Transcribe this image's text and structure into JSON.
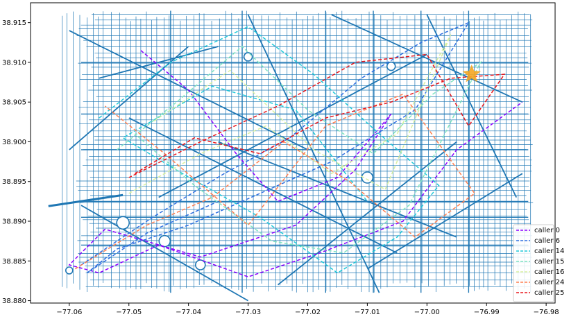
{
  "chart_data": {
    "type": "line",
    "title": "",
    "xlabel": "",
    "ylabel": "",
    "xlim": [
      -77.0665,
      -76.9785
    ],
    "ylim": [
      38.8797,
      38.9175
    ],
    "grid": false,
    "legend_position": "lower-right",
    "x_ticks": [
      {
        "value": -77.06,
        "label": "−77.06"
      },
      {
        "value": -77.05,
        "label": "−77.05"
      },
      {
        "value": -77.04,
        "label": "−77.04"
      },
      {
        "value": -77.03,
        "label": "−77.03"
      },
      {
        "value": -77.02,
        "label": "−77.02"
      },
      {
        "value": -77.01,
        "label": "−77.01"
      },
      {
        "value": -77.0,
        "label": "−77.00"
      },
      {
        "value": -76.99,
        "label": "−76.99"
      },
      {
        "value": -76.98,
        "label": "−76.98"
      }
    ],
    "y_ticks": [
      {
        "value": 38.88,
        "label": "38.880"
      },
      {
        "value": 38.885,
        "label": "38.885"
      },
      {
        "value": 38.89,
        "label": "38.890"
      },
      {
        "value": 38.895,
        "label": "38.895"
      },
      {
        "value": 38.9,
        "label": "38.900"
      },
      {
        "value": 38.905,
        "label": "38.905"
      },
      {
        "value": 38.91,
        "label": "38.910"
      },
      {
        "value": 38.915,
        "label": "38.915"
      }
    ],
    "street_network_color": "#1f77b4",
    "marker": {
      "shape": "star",
      "color": "#f5a623",
      "x": -76.9925,
      "y": 38.9085
    },
    "series": [
      {
        "name": "caller 0",
        "color": "#8b00ff",
        "x": [
          -77.048,
          -77.04,
          -77.032,
          -77.025,
          -77.015,
          -77.006,
          -77.012,
          -77.022,
          -77.038,
          -77.054,
          -77.06,
          -77.055,
          -77.045,
          -77.03,
          -77.018,
          -77.004,
          -76.995,
          -76.984
        ],
        "y": [
          38.9115,
          38.9065,
          38.8985,
          38.8925,
          38.8955,
          38.9035,
          38.8965,
          38.8895,
          38.8855,
          38.889,
          38.8845,
          38.8835,
          38.887,
          38.883,
          38.886,
          38.89,
          38.899,
          38.905
        ]
      },
      {
        "name": "caller 6",
        "color": "#2e6fe0",
        "x": [
          -77.058,
          -77.046,
          -77.034,
          -77.023,
          -77.011,
          -77.001,
          -76.993,
          -77.002,
          -77.016,
          -77.028,
          -77.04,
          -77.052,
          -77.057,
          -77.047,
          -77.035
        ],
        "y": [
          38.8845,
          38.8905,
          38.896,
          38.9005,
          38.908,
          38.9125,
          38.915,
          38.904,
          38.8975,
          38.8935,
          38.8895,
          38.8865,
          38.8835,
          38.8885,
          38.8925
        ]
      },
      {
        "name": "caller 14",
        "color": "#1ec8d8",
        "x": [
          -77.055,
          -77.043,
          -77.03,
          -77.019,
          -77.008,
          -76.998,
          -77.005,
          -77.015,
          -77.028,
          -77.041,
          -77.051,
          -77.036,
          -77.022,
          -77.01
        ],
        "y": [
          38.903,
          38.91,
          38.9145,
          38.9085,
          38.901,
          38.8945,
          38.888,
          38.8835,
          38.8905,
          38.896,
          38.9005,
          38.907,
          38.904,
          38.8925
        ]
      },
      {
        "name": "caller 15",
        "color": "#7fe3c0",
        "x": [
          -77.052,
          -77.042,
          -77.031,
          -77.02,
          -77.009,
          -76.999,
          -76.991,
          -77.003,
          -77.014,
          -77.026,
          -77.039,
          -77.049
        ],
        "y": [
          38.899,
          38.905,
          38.912,
          38.904,
          38.8985,
          38.906,
          38.91,
          38.892,
          38.886,
          38.8875,
          38.8945,
          38.901
        ]
      },
      {
        "name": "caller 16",
        "color": "#d8f0a0",
        "x": [
          -77.05,
          -77.038,
          -77.027,
          -77.016,
          -77.005,
          -76.996,
          -77.007,
          -77.019,
          -77.033,
          -77.046
        ],
        "y": [
          38.8935,
          38.8985,
          38.902,
          38.896,
          38.901,
          38.9135,
          38.894,
          38.899,
          38.909,
          38.9025
        ]
      },
      {
        "name": "caller 24",
        "color": "#ff7f50",
        "x": [
          -77.059,
          -77.047,
          -77.036,
          -77.024,
          -77.013,
          -77.002,
          -76.992,
          -77.004,
          -77.017,
          -77.03,
          -77.044,
          -77.054
        ],
        "y": [
          38.884,
          38.8895,
          38.893,
          38.9,
          38.895,
          38.888,
          38.8935,
          38.906,
          38.902,
          38.8895,
          38.8985,
          38.9045
        ]
      },
      {
        "name": "caller 25",
        "color": "#e8161b",
        "x": [
          -77.049,
          -77.039,
          -77.028,
          -77.017,
          -77.006,
          -76.996,
          -76.987,
          -76.993,
          -77.0,
          -77.012,
          -77.025,
          -77.038,
          -77.05
        ],
        "y": [
          38.896,
          38.9005,
          38.8985,
          38.903,
          38.905,
          38.908,
          38.9085,
          38.902,
          38.911,
          38.91,
          38.9045,
          38.9,
          38.8955
        ]
      }
    ]
  }
}
